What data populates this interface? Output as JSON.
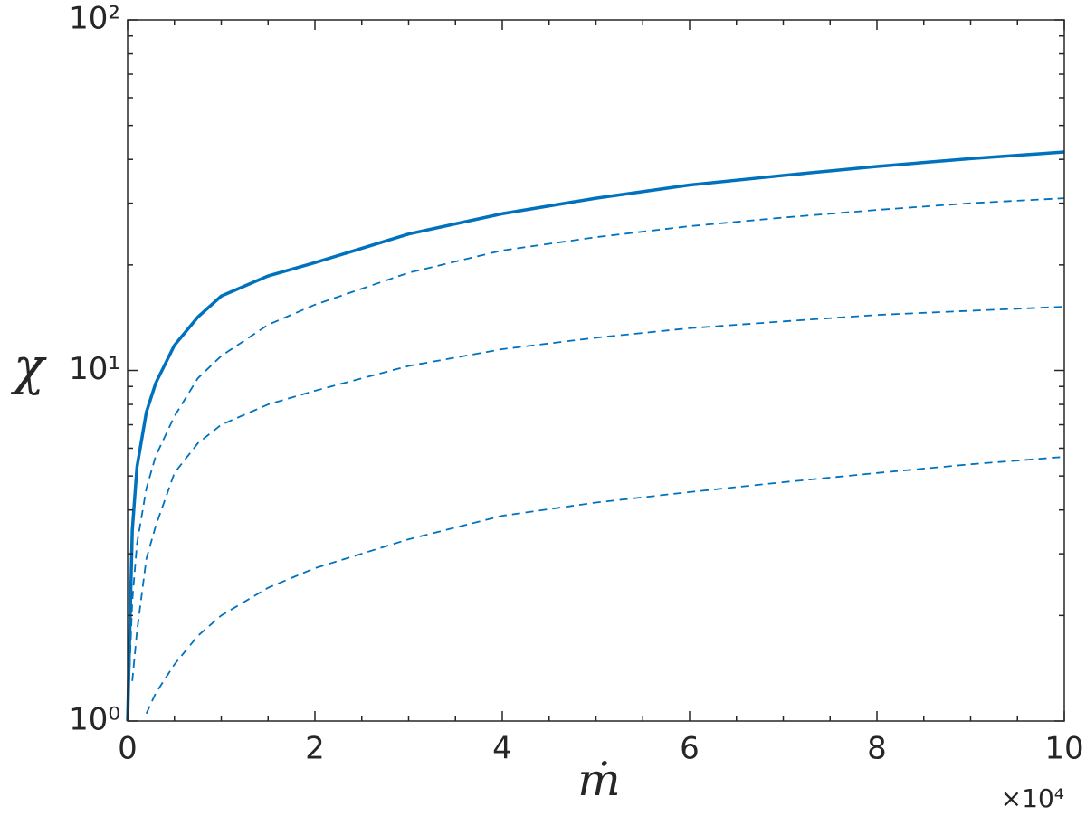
{
  "chart_data": {
    "type": "line",
    "x_label": "ṁ",
    "y_label": "χ",
    "x_exponent_label": "×10⁴",
    "x": [
      0,
      500,
      1000,
      2000,
      3000,
      5000,
      7500,
      10000,
      15000,
      20000,
      30000,
      40000,
      50000,
      60000,
      70000,
      80000,
      90000,
      100000
    ],
    "series": [
      {
        "color": "#0072bd",
        "line_style": "solid",
        "values": [
          1,
          3.5,
          5.3,
          7.6,
          9.2,
          11.8,
          14.2,
          16.3,
          18.6,
          20.3,
          24.5,
          28,
          31,
          33.8,
          36,
          38.2,
          40.2,
          42
        ]
      },
      {
        "color": "#0072bd",
        "line_style": "dashed",
        "values": [
          1,
          2.2,
          3.2,
          4.6,
          5.7,
          7.4,
          9.5,
          11.0,
          13.5,
          15.4,
          19,
          22,
          24,
          25.8,
          27.3,
          28.7,
          30,
          31
        ]
      },
      {
        "color": "#0072bd",
        "line_style": "dashed",
        "values": [
          null,
          1.3,
          1.8,
          2.9,
          3.6,
          5.1,
          6.2,
          7.0,
          8.0,
          8.75,
          10.3,
          11.5,
          12.4,
          13.2,
          13.8,
          14.4,
          14.8,
          15.2
        ]
      },
      {
        "color": "#0072bd",
        "line_style": "dashed",
        "values": [
          null,
          null,
          null,
          1.05,
          1.2,
          1.45,
          1.75,
          2.0,
          2.4,
          2.73,
          3.3,
          3.85,
          4.2,
          4.5,
          4.8,
          5.1,
          5.4,
          5.67
        ]
      }
    ],
    "xlim": [
      0,
      100000
    ],
    "xticks": [
      0,
      {
        "value": 20000,
        "label": "2"
      },
      {
        "value": 40000,
        "label": "4"
      },
      {
        "value": 60000,
        "label": "6"
      },
      {
        "value": 80000,
        "label": "8"
      },
      {
        "value": 100000,
        "label": "10"
      }
    ],
    "xminorticks": [
      5000,
      10000,
      15000,
      25000,
      30000,
      35000,
      45000,
      50000,
      55000,
      65000,
      70000,
      75000,
      85000,
      90000,
      95000
    ],
    "ylim": [
      1,
      100
    ],
    "y_log": true,
    "yticks": [
      {
        "value": 1,
        "label": "10⁰"
      },
      {
        "value": 10,
        "label": "10¹"
      },
      {
        "value": 100,
        "label": "10²"
      }
    ],
    "yminorticks": [
      2,
      3,
      4,
      5,
      6,
      7,
      8,
      9,
      20,
      30,
      40,
      50,
      60,
      70,
      80,
      90
    ]
  }
}
